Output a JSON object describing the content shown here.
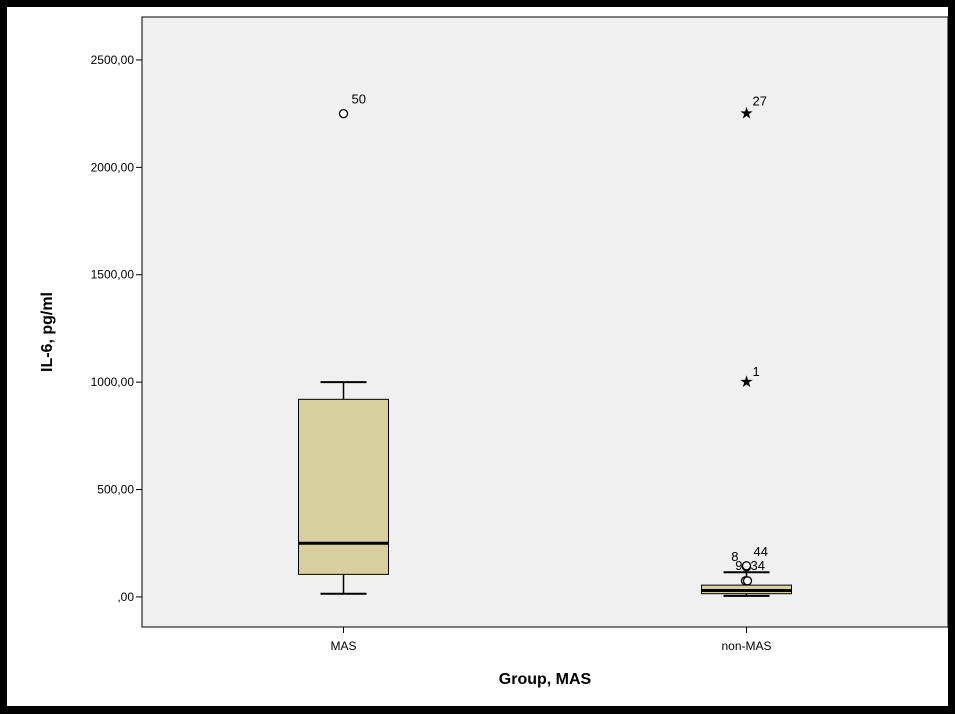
{
  "chart_data": {
    "type": "boxplot",
    "xlabel": "Group, MAS",
    "ylabel": "IL-6, pg/ml",
    "ylim": [
      -140,
      2700
    ],
    "yticks": [
      0,
      500,
      1000,
      1500,
      2000,
      2500
    ],
    "ytick_labels": [
      ",00",
      "500,00",
      "1000,00",
      "1500,00",
      "2000,00",
      "2500,00"
    ],
    "categories": [
      "MAS",
      "non-MAS"
    ],
    "boxes": [
      {
        "category": "MAS",
        "whisker_low": 15,
        "q1": 105,
        "median": 250,
        "q3": 920,
        "whisker_high": 1000,
        "outliers": [
          {
            "value": 2250,
            "label": "50",
            "marker": "circle"
          }
        ]
      },
      {
        "category": "non-MAS",
        "whisker_low": 5,
        "q1": 15,
        "median": 30,
        "q3": 55,
        "whisker_high": 115,
        "outliers": [
          {
            "value": 140,
            "label": "8",
            "marker": "circle"
          },
          {
            "value": 145,
            "label": "44",
            "marker": "circle"
          },
          {
            "value": 75,
            "label": "9",
            "marker": "circle"
          },
          {
            "value": 75,
            "label": "34",
            "marker": "circle"
          },
          {
            "value": 1000,
            "label": "1",
            "marker": "star"
          },
          {
            "value": 2250,
            "label": "27",
            "marker": "star"
          }
        ]
      }
    ],
    "colors": {
      "box_fill": "#d8cf9f",
      "plot_background": "#f0f0f0",
      "axis": "#000000"
    }
  }
}
